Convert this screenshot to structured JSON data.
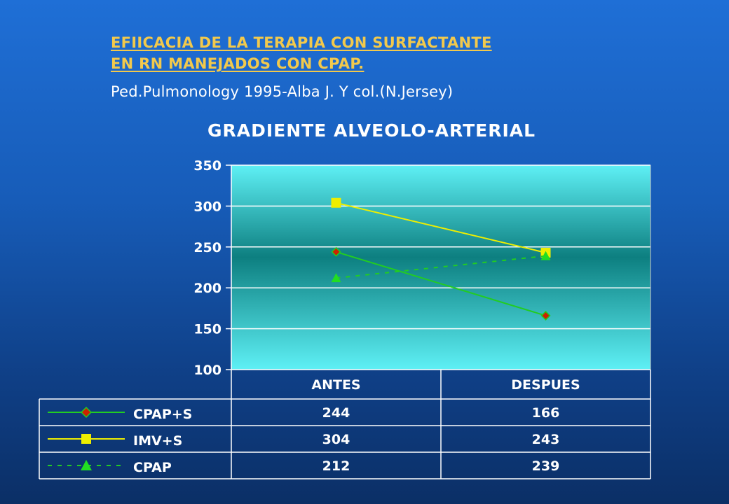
{
  "slide": {
    "title_line1": "EFIICACIA DE  LA TERAPIA CON SURFACTANTE",
    "title_line2": "EN RN MANEJADOS CON CPAP.",
    "subtitle": "Ped.Pulmonology 1995-Alba J. Y col.(N.Jersey)"
  },
  "chart_data": {
    "type": "line",
    "title": "GRADIENTE ALVEOLO-ARTERIAL",
    "categories": [
      "ANTES",
      "DESPUES"
    ],
    "ylim": [
      100,
      350
    ],
    "yticks": [
      "100",
      "150",
      "200",
      "250",
      "300",
      "350"
    ],
    "grid": true,
    "data_table": true,
    "series": [
      {
        "name": "CPAP+S",
        "values": [
          244,
          166
        ],
        "color": "#22cc22",
        "marker": "diamond",
        "marker_color": "#cc2200",
        "dashed": false
      },
      {
        "name": "IMV+S",
        "values": [
          304,
          243
        ],
        "color": "#eeee00",
        "marker": "square",
        "marker_color": "#eeee00",
        "dashed": false
      },
      {
        "name": "CPAP",
        "values": [
          212,
          239
        ],
        "color": "#22cc22",
        "marker": "triangle",
        "marker_color": "#22dd22",
        "dashed": true
      }
    ]
  },
  "colors": {
    "title": "#f2c94c",
    "plot_top": "#5ef0f5",
    "plot_mid": "#0d7f80",
    "grid": "#ffffff"
  }
}
